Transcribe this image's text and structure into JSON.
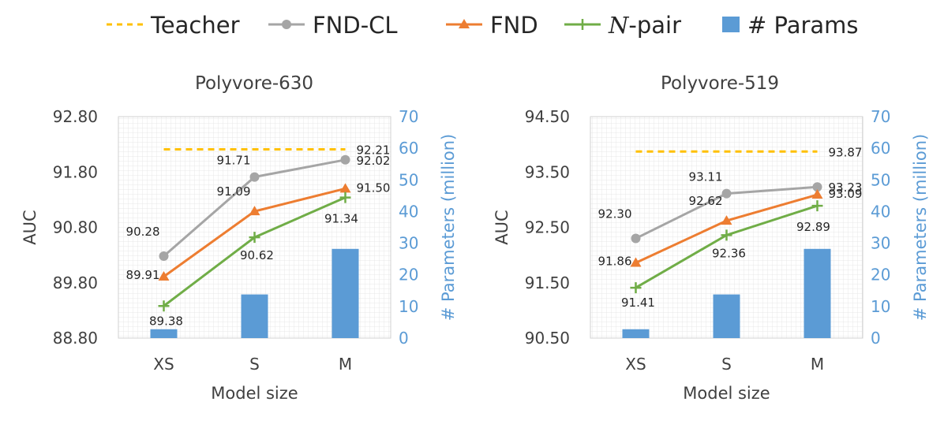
{
  "legend": [
    {
      "label": "Teacher",
      "marker": "dash",
      "color": "#FFC000"
    },
    {
      "label": "FND-CL",
      "marker": "circle",
      "color": "#A5A5A5"
    },
    {
      "label": "FND",
      "marker": "triangle",
      "color": "#ED7D31"
    },
    {
      "label": "N-pair",
      "label_italic": "N",
      "label_rest": "-pair",
      "marker": "plus",
      "color": "#70AD47"
    },
    {
      "label": "# Params",
      "marker": "bar",
      "color": "#5B9BD5"
    }
  ],
  "chart_data": [
    {
      "type": "line+bar",
      "title": "Polyvore-630",
      "xlabel": "Model size",
      "ylabel": "AUC",
      "y2label": "# Parameters (million)",
      "categories": [
        "XS",
        "S",
        "M"
      ],
      "ylim": [
        88.8,
        92.8
      ],
      "yticks": [
        "88.80",
        "89.80",
        "90.80",
        "91.80",
        "92.80"
      ],
      "y2lim": [
        0,
        70
      ],
      "y2ticks": [
        "0",
        "10",
        "20",
        "30",
        "40",
        "50",
        "60",
        "70"
      ],
      "grid": true,
      "series": [
        {
          "name": "Teacher",
          "type": "dashed-line",
          "color": "#FFC000",
          "values": [
            92.21,
            92.21,
            92.21
          ],
          "labels": [
            "",
            "",
            "92.21"
          ]
        },
        {
          "name": "FND-CL",
          "type": "line",
          "marker": "circle",
          "color": "#A5A5A5",
          "values": [
            90.28,
            91.71,
            92.02
          ],
          "labels": [
            "90.28",
            "91.71",
            "92.02"
          ]
        },
        {
          "name": "FND",
          "type": "line",
          "marker": "triangle",
          "color": "#ED7D31",
          "values": [
            89.91,
            91.09,
            91.5
          ],
          "labels": [
            "89.91",
            "91.09",
            "91.50"
          ]
        },
        {
          "name": "N-pair",
          "type": "line",
          "marker": "plus",
          "color": "#70AD47",
          "values": [
            89.38,
            90.62,
            91.34
          ],
          "labels": [
            "89.38",
            "90.62",
            "91.34"
          ]
        }
      ],
      "bars": {
        "name": "# Params",
        "color": "#5B9BD5",
        "values": [
          2.8,
          13.8,
          28.2
        ]
      }
    },
    {
      "type": "line+bar",
      "title": "Polyvore-519",
      "xlabel": "Model size",
      "ylabel": "AUC",
      "y2label": "# Parameters (million)",
      "categories": [
        "XS",
        "S",
        "M"
      ],
      "ylim": [
        90.5,
        94.5
      ],
      "yticks": [
        "90.50",
        "91.50",
        "92.50",
        "93.50",
        "94.50"
      ],
      "y2lim": [
        0,
        70
      ],
      "y2ticks": [
        "0",
        "10",
        "20",
        "30",
        "40",
        "50",
        "60",
        "70"
      ],
      "grid": true,
      "series": [
        {
          "name": "Teacher",
          "type": "dashed-line",
          "color": "#FFC000",
          "values": [
            93.87,
            93.87,
            93.87
          ],
          "labels": [
            "",
            "",
            "93.87"
          ]
        },
        {
          "name": "FND-CL",
          "type": "line",
          "marker": "circle",
          "color": "#A5A5A5",
          "values": [
            92.3,
            93.11,
            93.23
          ],
          "labels": [
            "92.30",
            "93.11",
            "93.23"
          ]
        },
        {
          "name": "FND",
          "type": "line",
          "marker": "triangle",
          "color": "#ED7D31",
          "values": [
            91.86,
            92.62,
            93.09
          ],
          "labels": [
            "91.86",
            "92.62",
            "93.09"
          ]
        },
        {
          "name": "N-pair",
          "type": "line",
          "marker": "plus",
          "color": "#70AD47",
          "values": [
            91.41,
            92.36,
            92.89
          ],
          "labels": [
            "91.41",
            "92.36",
            "92.89"
          ]
        }
      ],
      "bars": {
        "name": "# Params",
        "color": "#5B9BD5",
        "values": [
          2.8,
          13.8,
          28.2
        ]
      }
    }
  ]
}
